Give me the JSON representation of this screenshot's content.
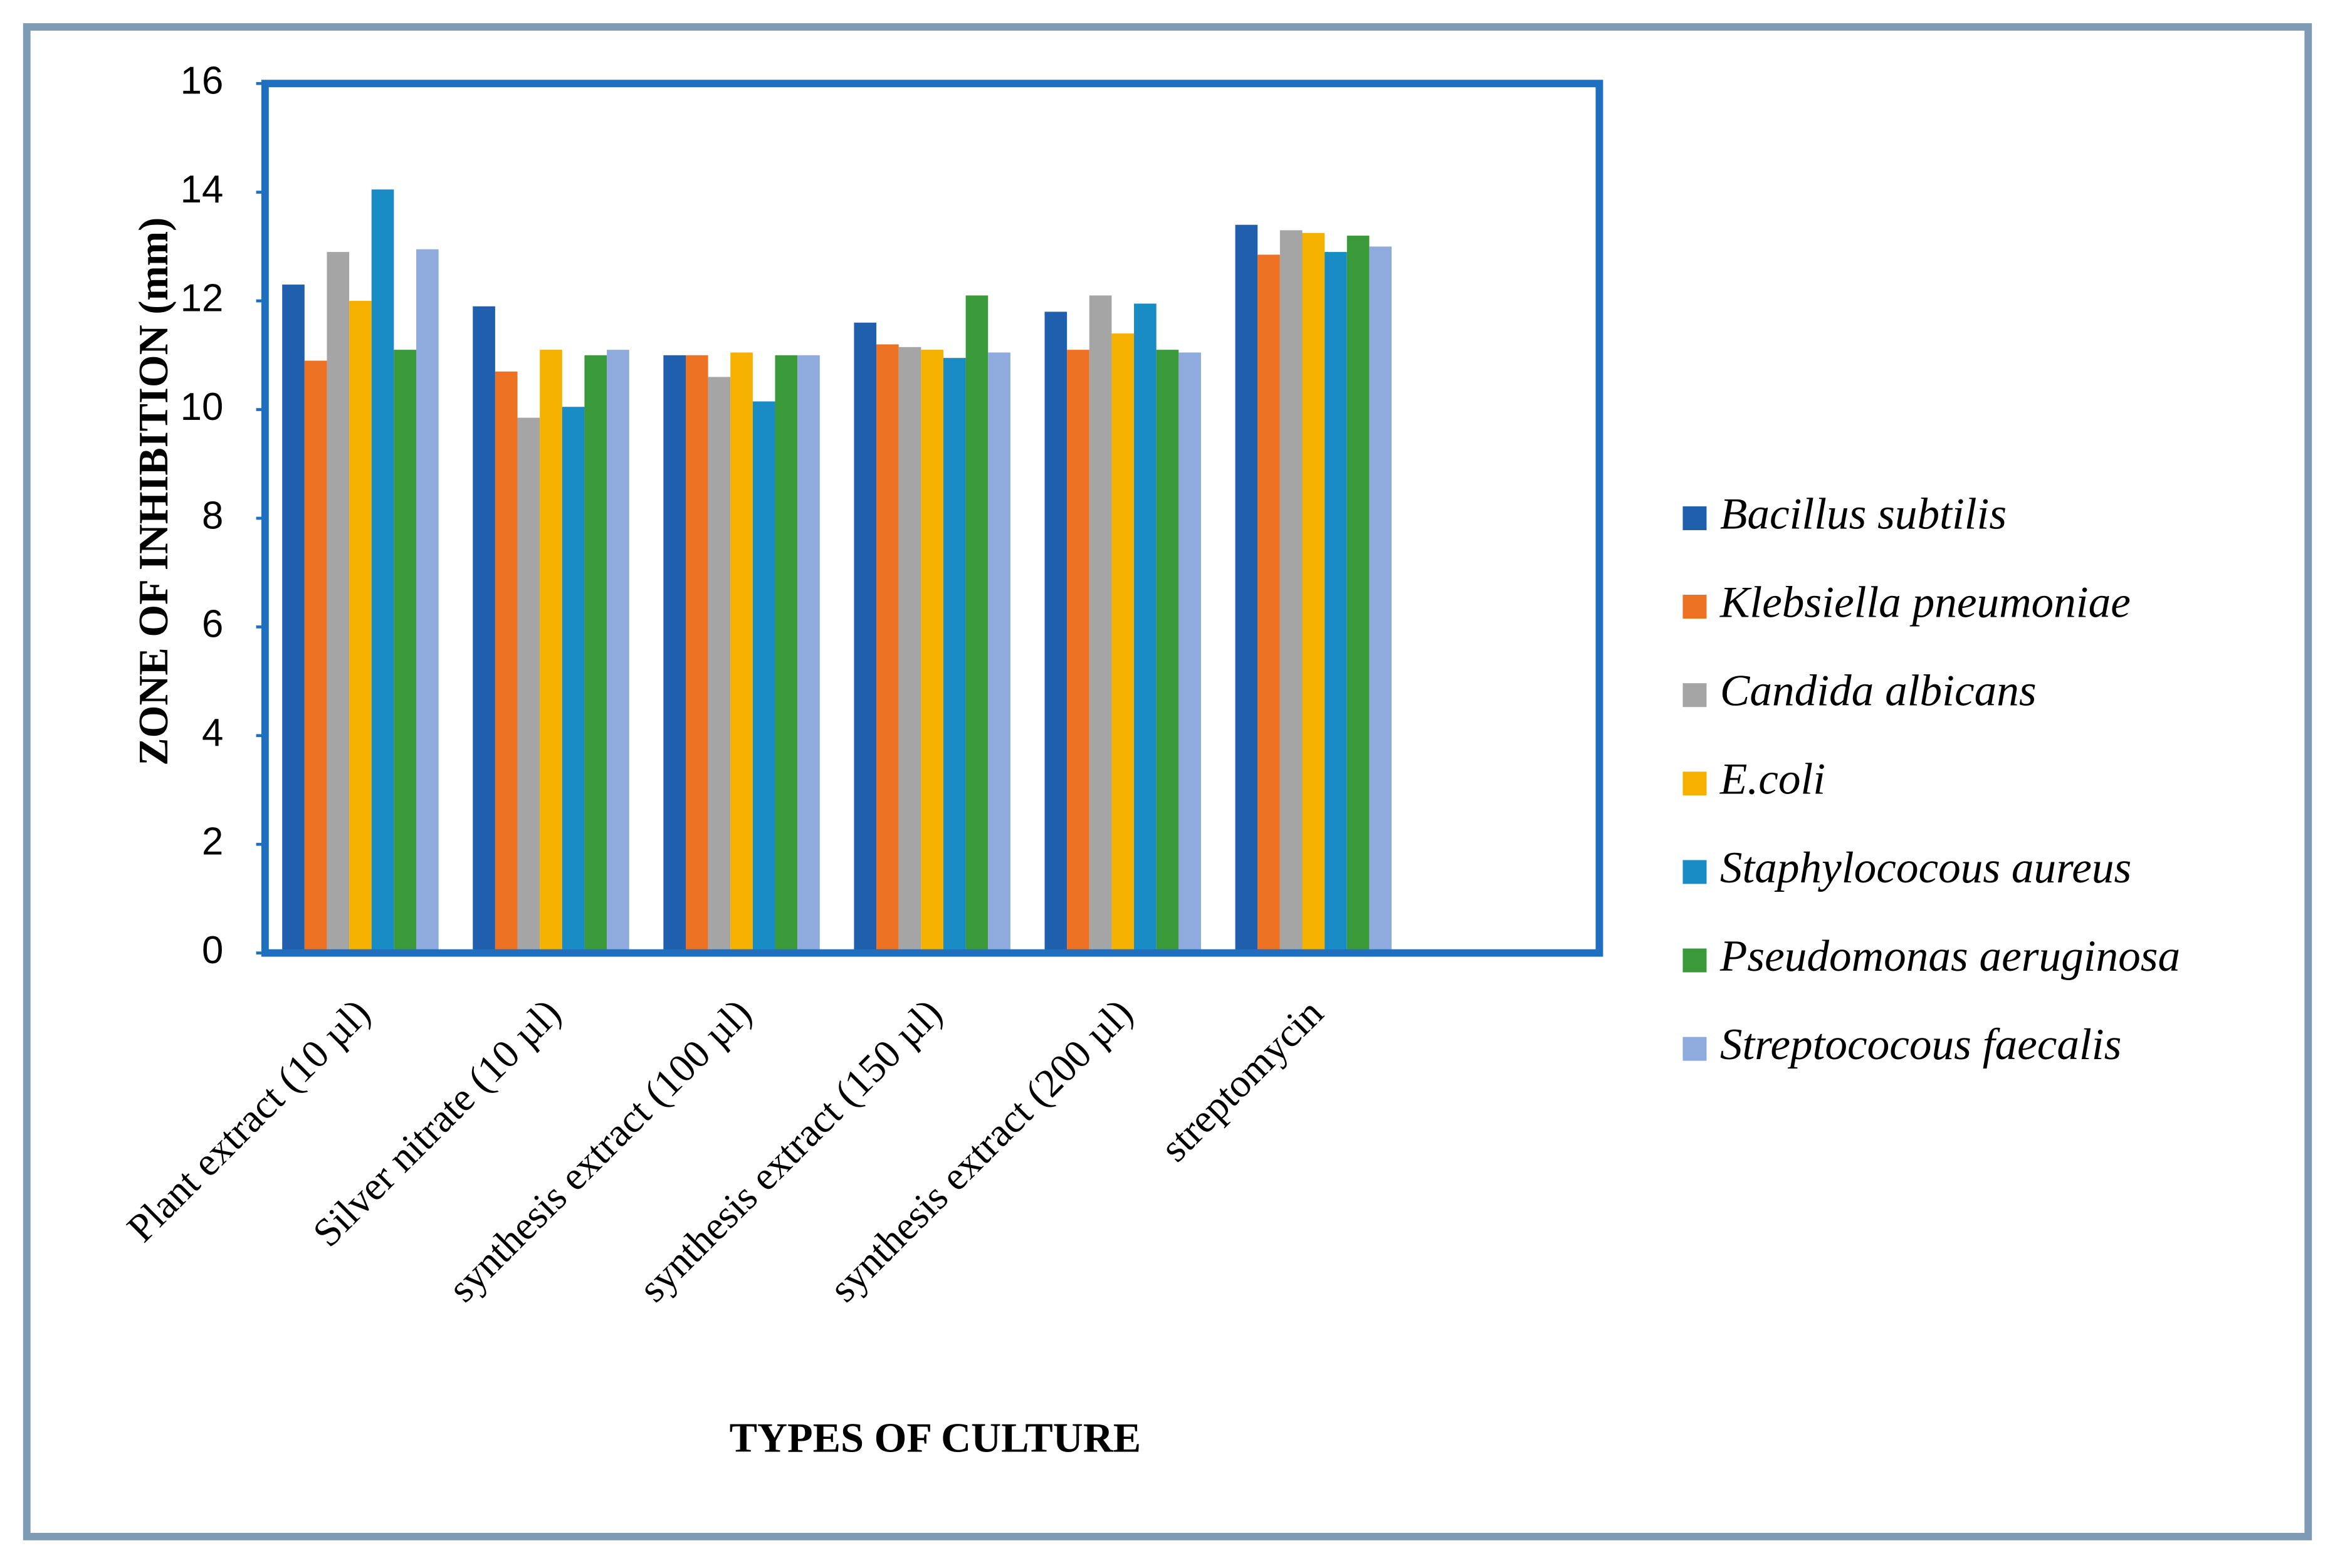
{
  "chart_data": {
    "type": "bar",
    "x_label": "TYPES OF CULTURE",
    "y_label": "ZONE OF INHIBITION (mm)",
    "categories": [
      "Plant extract (10 µl)",
      "Silver nitrate (10 µl)",
      "synthesis extract (100 µl)",
      "synthesis extract (150 µl)",
      "synthesis extract (200 µl)",
      "streptomycin",
      null
    ],
    "series": [
      {
        "name": "Bacillus subtilis",
        "color": "#1f5fad",
        "values": [
          12.3,
          11.9,
          11.0,
          11.6,
          11.8,
          13.4,
          null
        ]
      },
      {
        "name": "Klebsiella pneumoniae",
        "color": "#ed7123",
        "values": [
          10.9,
          10.7,
          11.0,
          11.2,
          11.1,
          12.85,
          null
        ]
      },
      {
        "name": "Candida albicans",
        "color": "#a5a5a5",
        "values": [
          12.9,
          9.85,
          10.6,
          11.15,
          12.1,
          13.3,
          null
        ]
      },
      {
        "name": "E.coli",
        "color": "#f5b000",
        "values": [
          12.0,
          11.1,
          11.05,
          11.1,
          11.4,
          13.25,
          null
        ]
      },
      {
        "name": "Staphylococous aureus",
        "color": "#1a8cc5",
        "values": [
          14.05,
          10.05,
          10.15,
          10.95,
          11.95,
          12.9,
          null
        ]
      },
      {
        "name": "Pseudomonas aeruginosa",
        "color": "#3a9a3a",
        "values": [
          11.1,
          11.0,
          11.0,
          12.1,
          11.1,
          13.2,
          null
        ]
      },
      {
        "name": "Streptococous faecalis",
        "color": "#8faadc",
        "values": [
          12.95,
          11.1,
          11.0,
          11.05,
          11.05,
          13.0,
          null
        ]
      }
    ],
    "ylim": [
      0,
      16
    ],
    "yticks": [
      0,
      2,
      4,
      6,
      8,
      10,
      12,
      14,
      16
    ],
    "grid": false,
    "legend": "right"
  }
}
